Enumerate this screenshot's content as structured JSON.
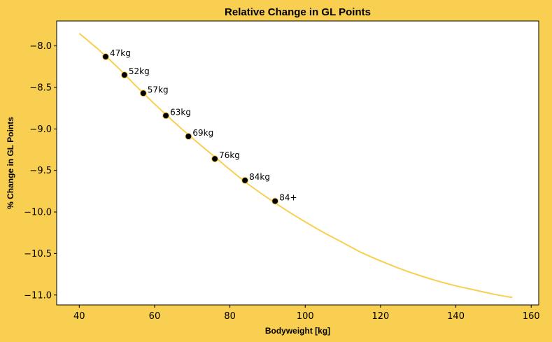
{
  "chart_data": {
    "type": "line",
    "title": "Relative Change in GL Points",
    "xlabel": "Bodyweight [kg]",
    "ylabel": "% Change in GL Points",
    "xlim": [
      34,
      162
    ],
    "ylim": [
      -11.12,
      -7.7
    ],
    "x_ticks": [
      40,
      60,
      80,
      100,
      120,
      140,
      160
    ],
    "y_ticks": [
      -8.0,
      -8.5,
      -9.0,
      -9.5,
      -10.0,
      -10.5,
      -11.0
    ],
    "x_tick_labels": [
      "40",
      "60",
      "80",
      "100",
      "120",
      "140",
      "160"
    ],
    "y_tick_labels": [
      "−8.0",
      "−8.5",
      "−9.0",
      "−9.5",
      "−10.0",
      "−10.5",
      "−11.0"
    ],
    "grid": false,
    "curve": {
      "x": [
        40,
        45,
        50,
        55,
        60,
        65,
        70,
        75,
        80,
        85,
        90,
        95,
        100,
        105,
        110,
        115,
        120,
        125,
        130,
        135,
        140,
        145,
        150,
        155
      ],
      "y": [
        -7.85,
        -8.04,
        -8.25,
        -8.48,
        -8.7,
        -8.91,
        -9.11,
        -9.3,
        -9.49,
        -9.67,
        -9.83,
        -9.98,
        -10.12,
        -10.25,
        -10.37,
        -10.49,
        -10.59,
        -10.68,
        -10.76,
        -10.83,
        -10.89,
        -10.94,
        -10.99,
        -11.03
      ],
      "color": "#f8cf50"
    },
    "points": {
      "labels": [
        "47kg",
        "52kg",
        "57kg",
        "63kg",
        "69kg",
        "76kg",
        "84kg",
        "84+"
      ],
      "x": [
        47,
        52,
        57,
        63,
        69,
        76,
        84,
        92
      ],
      "y": [
        -8.13,
        -8.35,
        -8.57,
        -8.84,
        -9.09,
        -9.36,
        -9.62,
        -9.87
      ],
      "color": "#000000"
    },
    "colors": {
      "background": "#f8cf50",
      "plot_area": "#ffffff"
    }
  }
}
